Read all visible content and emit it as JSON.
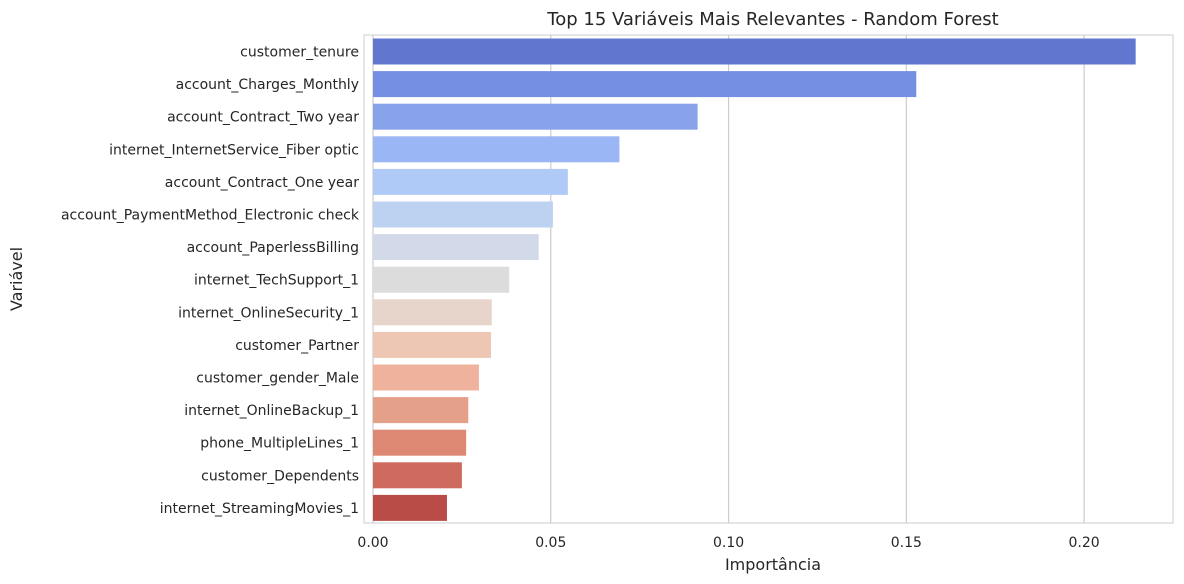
{
  "chart_data": {
    "type": "bar",
    "orientation": "horizontal",
    "title": "Top 15 Variáveis Mais Relevantes - Random Forest",
    "xlabel": "Importância",
    "ylabel": "Variável",
    "xlim": [
      0,
      0.225
    ],
    "xticks": [
      "0.00",
      "0.05",
      "0.10",
      "0.15",
      "0.20"
    ],
    "grid": "vertical",
    "categories": [
      "customer_tenure",
      "account_Charges_Monthly",
      "account_Contract_Two year",
      "internet_InternetService_Fiber optic",
      "account_Contract_One year",
      "account_PaymentMethod_Electronic check",
      "account_PaperlessBilling",
      "internet_TechSupport_1",
      "internet_OnlineSecurity_1",
      "customer_Partner",
      "customer_gender_Male",
      "internet_OnlineBackup_1",
      "phone_MultipleLines_1",
      "customer_Dependents",
      "internet_StreamingMovies_1"
    ],
    "values": [
      0.2145,
      0.1528,
      0.0913,
      0.0693,
      0.0548,
      0.0506,
      0.0466,
      0.0383,
      0.0334,
      0.0332,
      0.0298,
      0.0268,
      0.0262,
      0.025,
      0.0208
    ],
    "colors": [
      "#6176cf",
      "#7590e2",
      "#88a3e9",
      "#9bb6f4",
      "#b0caf8",
      "#bdd1f1",
      "#d2d9e8",
      "#dcdcdc",
      "#e7d4ca",
      "#edc7b3",
      "#efb39d",
      "#e5a089",
      "#dc8872",
      "#cf6a5f",
      "#b94c47"
    ]
  }
}
